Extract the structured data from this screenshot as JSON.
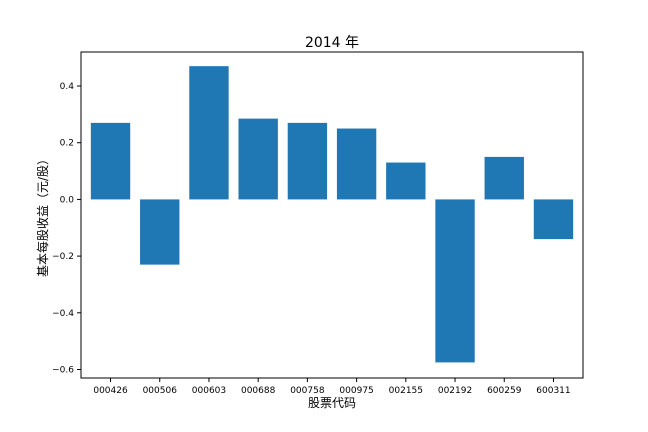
{
  "chart_data": {
    "type": "bar",
    "title": "2014 年",
    "xlabel": "股票代码",
    "ylabel": "基本每股收益（元/股）",
    "categories": [
      "000426",
      "000506",
      "000603",
      "000688",
      "000758",
      "000975",
      "002155",
      "002192",
      "600259",
      "600311"
    ],
    "values": [
      0.27,
      -0.23,
      0.47,
      0.285,
      0.27,
      0.25,
      0.13,
      -0.575,
      0.15,
      -0.14
    ],
    "ylim": [
      -0.63,
      0.52
    ],
    "yticks": [
      -0.6,
      -0.4,
      -0.2,
      0.0,
      0.2,
      0.4
    ],
    "ytick_labels": [
      "−0.6",
      "−0.4",
      "−0.2",
      "0.0",
      "0.2",
      "0.4"
    ],
    "grid": false,
    "bar_color": "#1f77b4"
  }
}
